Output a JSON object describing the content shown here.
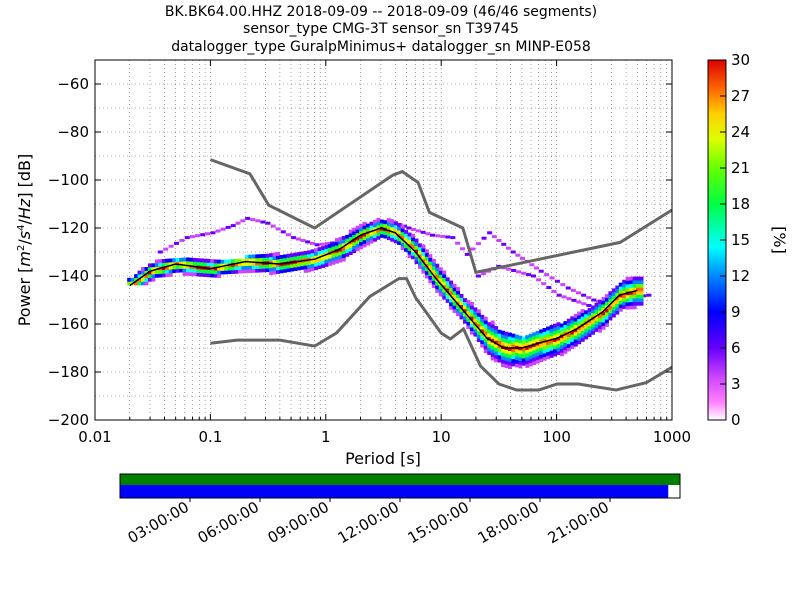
{
  "title_lines": [
    "BK.BK64.00.HHZ   2018-09-09 -- 2018-09-09  (46/46 segments)",
    "sensor_type CMG-3T sensor_sn T39745",
    "datalogger_type GuralpMinimus+ datalogger_sn MINP-E058"
  ],
  "chart_data": {
    "type": "heatmap",
    "xlabel": "Period [s]",
    "ylabel_parts": [
      "Power [",
      "m",
      "2",
      "/",
      "s",
      "4",
      "/",
      "Hz",
      "] [dB]"
    ],
    "x_scale": "log",
    "xlim": [
      0.01,
      1000
    ],
    "ylim": [
      -200,
      -50
    ],
    "x_tick_values": [
      0.01,
      0.1,
      1,
      10,
      100,
      1000
    ],
    "x_tick_labels": [
      "0.01",
      "0.1",
      "1",
      "10",
      "100",
      "1000"
    ],
    "y_tick_values": [
      -200,
      -180,
      -160,
      -140,
      -120,
      -100,
      -80,
      -60
    ],
    "y_tick_labels": [
      "−200",
      "−180",
      "−160",
      "−140",
      "−120",
      "−100",
      "−80",
      "−60"
    ],
    "grid": true,
    "colorbar": {
      "label": "[%]",
      "range": [
        0,
        30
      ],
      "tick_values": [
        0,
        3,
        6,
        9,
        12,
        15,
        18,
        21,
        24,
        27,
        30
      ],
      "tick_labels": [
        "0",
        "3",
        "6",
        "9",
        "12",
        "15",
        "18",
        "21",
        "24",
        "27",
        "30"
      ]
    },
    "nhnm": {
      "period": [
        0.1,
        0.22,
        0.32,
        0.8,
        3.8,
        4.6,
        6.3,
        7.9,
        15.4,
        20,
        354.8,
        1000
      ],
      "power": [
        -91.5,
        -97.4,
        -110.5,
        -120,
        -98,
        -96.5,
        -101,
        -113.5,
        -120,
        -138.5,
        -126,
        -112.5
      ]
    },
    "nlnm": {
      "period": [
        0.1,
        0.17,
        0.4,
        0.8,
        1.24,
        2.4,
        4.3,
        5,
        6,
        10,
        12,
        15.6,
        21.9,
        31.6,
        45,
        70,
        101,
        154,
        328,
        600,
        1000
      ],
      "power": [
        -168,
        -166.7,
        -166.7,
        -169.2,
        -163.7,
        -148.6,
        -141.1,
        -141.1,
        -149,
        -163.8,
        -166.2,
        -162.1,
        -177.5,
        -185,
        -187.5,
        -187.5,
        -185,
        -185,
        -187.5,
        -184.4,
        -178
      ]
    },
    "mode_curve": {
      "period": [
        0.02,
        0.03,
        0.05,
        0.1,
        0.2,
        0.4,
        0.8,
        1.3,
        2,
        3,
        4,
        6,
        9,
        13,
        18,
        25,
        35,
        50,
        70,
        100,
        150,
        250,
        350,
        500
      ],
      "power": [
        -144,
        -138,
        -135,
        -137,
        -134,
        -135,
        -133,
        -129,
        -123,
        -120,
        -122,
        -130,
        -141,
        -150,
        -158,
        -166,
        -170,
        -170,
        -168,
        -166,
        -162,
        -155,
        -148,
        -146
      ]
    },
    "mode_band": [
      {
        "period": 0.03,
        "lo": -140,
        "hi": -136
      },
      {
        "period": 0.06,
        "lo": -139,
        "hi": -135
      },
      {
        "period": 0.12,
        "lo": -140,
        "hi": -136
      },
      {
        "period": 0.3,
        "lo": -139,
        "hi": -134
      },
      {
        "period": 0.7,
        "lo": -136,
        "hi": -131
      },
      {
        "period": 1.5,
        "lo": -131,
        "hi": -124
      },
      {
        "period": 3,
        "lo": -123,
        "hi": -118
      },
      {
        "period": 5,
        "lo": -128,
        "hi": -121
      },
      {
        "period": 9,
        "lo": -145,
        "hi": -136
      },
      {
        "period": 15,
        "lo": -155,
        "hi": -147
      },
      {
        "period": 30,
        "lo": -178,
        "hi": -165
      },
      {
        "period": 50,
        "lo": -181,
        "hi": -168
      },
      {
        "period": 100,
        "lo": -175,
        "hi": -163
      },
      {
        "period": 200,
        "lo": -165,
        "hi": -155
      },
      {
        "period": 400,
        "lo": -153,
        "hi": -143
      }
    ],
    "outliers": [
      {
        "period": [
          0.035,
          0.06,
          0.1,
          0.15,
          0.2,
          0.3,
          0.5,
          0.8,
          1.2,
          2.5
        ],
        "power": [
          -130,
          -124,
          -122,
          -119,
          -116,
          -118,
          -124,
          -127,
          -126,
          -121
        ]
      },
      {
        "period": [
          3.5,
          5,
          8,
          12,
          16,
          25,
          40,
          70,
          120,
          200,
          350
        ],
        "power": [
          -117,
          -120,
          -123,
          -124,
          -131,
          -122,
          -130,
          -138,
          -145,
          -150,
          -153
        ]
      },
      {
        "period": [
          20,
          30,
          60,
          100,
          200,
          400,
          600
        ],
        "power": [
          -140,
          -136,
          -140,
          -148,
          -153,
          -149,
          -148
        ]
      }
    ]
  },
  "timeline": {
    "tick_labels": [
      "03:00:00",
      "06:00:00",
      "09:00:00",
      "12:00:00",
      "15:00:00",
      "18:00:00",
      "21:00:00"
    ],
    "tick_hours": [
      3,
      6,
      9,
      12,
      15,
      18,
      21
    ],
    "total_hours": 24,
    "green_fraction": 1.0,
    "blue_fraction": 0.979,
    "colors": {
      "green": "#008000",
      "blue": "#0000ff"
    }
  }
}
